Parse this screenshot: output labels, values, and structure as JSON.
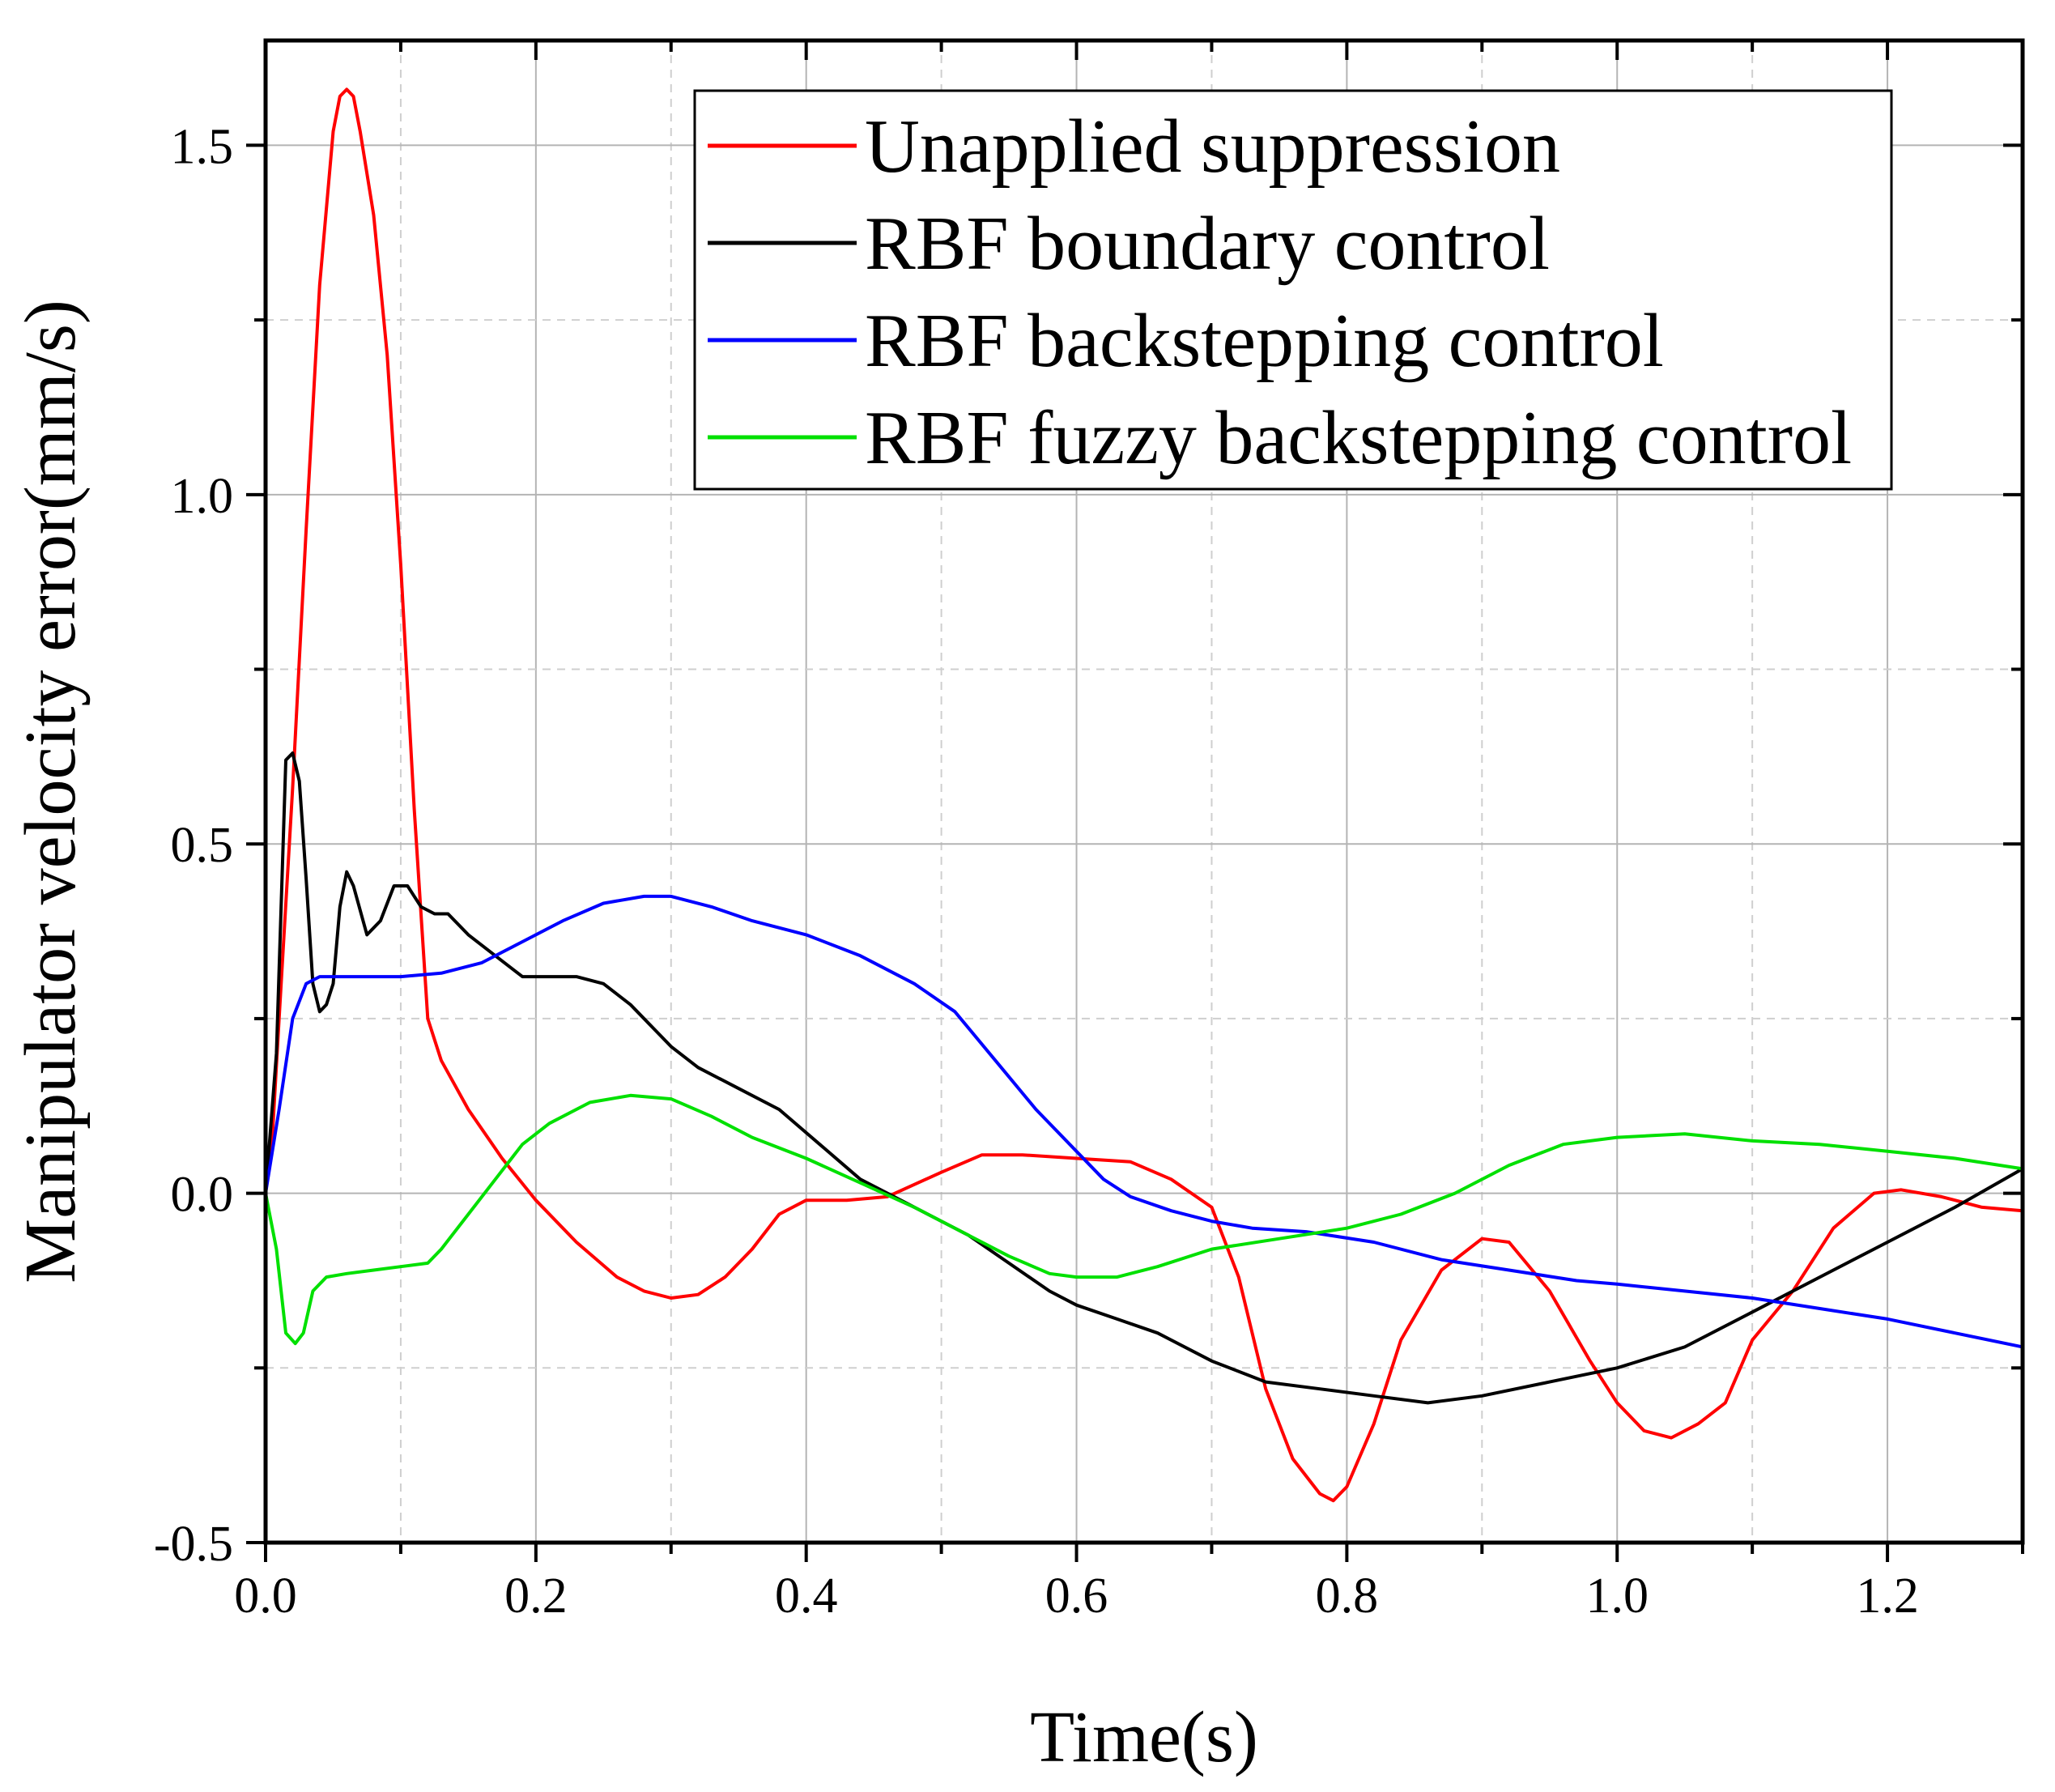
{
  "chart_data": {
    "type": "line",
    "title": "",
    "xlabel": "Time(s)",
    "ylabel": "Manipulator velocity error(mm/s)",
    "xlim": [
      0.0,
      1.3
    ],
    "ylim": [
      -0.5,
      1.65
    ],
    "x_ticks": [
      0.0,
      0.2,
      0.4,
      0.6,
      0.8,
      1.0,
      1.2
    ],
    "x_tick_labels": [
      "0.0",
      "0.2",
      "0.4",
      "0.6",
      "0.8",
      "1.0",
      "1.2"
    ],
    "y_ticks": [
      -0.5,
      0.0,
      0.5,
      1.0,
      1.5
    ],
    "y_tick_labels": [
      "-0.5",
      "0.0",
      "0.5",
      "1.0",
      "1.5"
    ],
    "grid": true,
    "legend_position": "top-right",
    "series": [
      {
        "name": "Unapplied suppression",
        "color": "#ff0000",
        "points": [
          [
            0.0,
            0.0
          ],
          [
            0.005,
            0.08
          ],
          [
            0.01,
            0.25
          ],
          [
            0.02,
            0.58
          ],
          [
            0.03,
            0.95
          ],
          [
            0.04,
            1.3
          ],
          [
            0.05,
            1.52
          ],
          [
            0.055,
            1.57
          ],
          [
            0.06,
            1.58
          ],
          [
            0.065,
            1.57
          ],
          [
            0.07,
            1.52
          ],
          [
            0.08,
            1.4
          ],
          [
            0.09,
            1.2
          ],
          [
            0.1,
            0.9
          ],
          [
            0.11,
            0.55
          ],
          [
            0.12,
            0.25
          ],
          [
            0.13,
            0.19
          ],
          [
            0.15,
            0.12
          ],
          [
            0.175,
            0.05
          ],
          [
            0.2,
            -0.01
          ],
          [
            0.23,
            -0.07
          ],
          [
            0.26,
            -0.12
          ],
          [
            0.28,
            -0.14
          ],
          [
            0.3,
            -0.15
          ],
          [
            0.32,
            -0.145
          ],
          [
            0.34,
            -0.12
          ],
          [
            0.36,
            -0.08
          ],
          [
            0.38,
            -0.03
          ],
          [
            0.4,
            -0.01
          ],
          [
            0.43,
            -0.01
          ],
          [
            0.46,
            -0.005
          ],
          [
            0.5,
            0.03
          ],
          [
            0.53,
            0.055
          ],
          [
            0.56,
            0.055
          ],
          [
            0.6,
            0.05
          ],
          [
            0.64,
            0.045
          ],
          [
            0.67,
            0.02
          ],
          [
            0.7,
            -0.02
          ],
          [
            0.72,
            -0.12
          ],
          [
            0.74,
            -0.28
          ],
          [
            0.76,
            -0.38
          ],
          [
            0.78,
            -0.43
          ],
          [
            0.79,
            -0.44
          ],
          [
            0.8,
            -0.42
          ],
          [
            0.82,
            -0.33
          ],
          [
            0.84,
            -0.21
          ],
          [
            0.87,
            -0.11
          ],
          [
            0.9,
            -0.065
          ],
          [
            0.92,
            -0.07
          ],
          [
            0.95,
            -0.14
          ],
          [
            0.98,
            -0.24
          ],
          [
            1.0,
            -0.3
          ],
          [
            1.02,
            -0.34
          ],
          [
            1.04,
            -0.35
          ],
          [
            1.06,
            -0.33
          ],
          [
            1.08,
            -0.3
          ],
          [
            1.1,
            -0.21
          ],
          [
            1.13,
            -0.14
          ],
          [
            1.16,
            -0.05
          ],
          [
            1.19,
            0.0
          ],
          [
            1.21,
            0.005
          ],
          [
            1.24,
            -0.005
          ],
          [
            1.27,
            -0.02
          ],
          [
            1.3,
            -0.025
          ]
        ]
      },
      {
        "name": "RBF boundary control",
        "color": "#000000",
        "points": [
          [
            0.0,
            0.0
          ],
          [
            0.008,
            0.2
          ],
          [
            0.015,
            0.62
          ],
          [
            0.02,
            0.63
          ],
          [
            0.025,
            0.59
          ],
          [
            0.03,
            0.45
          ],
          [
            0.035,
            0.3
          ],
          [
            0.04,
            0.26
          ],
          [
            0.045,
            0.27
          ],
          [
            0.05,
            0.3
          ],
          [
            0.055,
            0.41
          ],
          [
            0.06,
            0.46
          ],
          [
            0.065,
            0.44
          ],
          [
            0.075,
            0.37
          ],
          [
            0.085,
            0.39
          ],
          [
            0.095,
            0.44
          ],
          [
            0.105,
            0.44
          ],
          [
            0.115,
            0.41
          ],
          [
            0.125,
            0.4
          ],
          [
            0.135,
            0.4
          ],
          [
            0.15,
            0.37
          ],
          [
            0.17,
            0.34
          ],
          [
            0.19,
            0.31
          ],
          [
            0.21,
            0.31
          ],
          [
            0.23,
            0.31
          ],
          [
            0.25,
            0.3
          ],
          [
            0.27,
            0.27
          ],
          [
            0.3,
            0.21
          ],
          [
            0.32,
            0.18
          ],
          [
            0.35,
            0.15
          ],
          [
            0.38,
            0.12
          ],
          [
            0.41,
            0.07
          ],
          [
            0.44,
            0.02
          ],
          [
            0.47,
            -0.01
          ],
          [
            0.5,
            -0.04
          ],
          [
            0.52,
            -0.06
          ],
          [
            0.55,
            -0.1
          ],
          [
            0.58,
            -0.14
          ],
          [
            0.6,
            -0.16
          ],
          [
            0.63,
            -0.18
          ],
          [
            0.66,
            -0.2
          ],
          [
            0.7,
            -0.24
          ],
          [
            0.74,
            -0.27
          ],
          [
            0.78,
            -0.28
          ],
          [
            0.82,
            -0.29
          ],
          [
            0.86,
            -0.3
          ],
          [
            0.9,
            -0.29
          ],
          [
            0.95,
            -0.27
          ],
          [
            1.0,
            -0.25
          ],
          [
            1.05,
            -0.22
          ],
          [
            1.1,
            -0.17
          ],
          [
            1.15,
            -0.12
          ],
          [
            1.2,
            -0.07
          ],
          [
            1.25,
            -0.02
          ],
          [
            1.3,
            0.035
          ]
        ]
      },
      {
        "name": "RBF backstepping control",
        "color": "#0000ff",
        "points": [
          [
            0.0,
            0.0
          ],
          [
            0.01,
            0.12
          ],
          [
            0.02,
            0.25
          ],
          [
            0.03,
            0.3
          ],
          [
            0.04,
            0.31
          ],
          [
            0.06,
            0.31
          ],
          [
            0.08,
            0.31
          ],
          [
            0.1,
            0.31
          ],
          [
            0.13,
            0.315
          ],
          [
            0.16,
            0.33
          ],
          [
            0.19,
            0.36
          ],
          [
            0.22,
            0.39
          ],
          [
            0.25,
            0.415
          ],
          [
            0.28,
            0.425
          ],
          [
            0.3,
            0.425
          ],
          [
            0.33,
            0.41
          ],
          [
            0.36,
            0.39
          ],
          [
            0.4,
            0.37
          ],
          [
            0.44,
            0.34
          ],
          [
            0.48,
            0.3
          ],
          [
            0.51,
            0.26
          ],
          [
            0.54,
            0.19
          ],
          [
            0.57,
            0.12
          ],
          [
            0.6,
            0.06
          ],
          [
            0.62,
            0.02
          ],
          [
            0.64,
            -0.005
          ],
          [
            0.67,
            -0.025
          ],
          [
            0.7,
            -0.04
          ],
          [
            0.73,
            -0.05
          ],
          [
            0.77,
            -0.055
          ],
          [
            0.82,
            -0.07
          ],
          [
            0.87,
            -0.095
          ],
          [
            0.92,
            -0.11
          ],
          [
            0.97,
            -0.125
          ],
          [
            1.0,
            -0.13
          ],
          [
            1.05,
            -0.14
          ],
          [
            1.1,
            -0.15
          ],
          [
            1.15,
            -0.165
          ],
          [
            1.2,
            -0.18
          ],
          [
            1.25,
            -0.2
          ],
          [
            1.3,
            -0.22
          ]
        ]
      },
      {
        "name": "RBF fuzzy backstepping control",
        "color": "#00e000",
        "points": [
          [
            0.0,
            0.0
          ],
          [
            0.008,
            -0.08
          ],
          [
            0.015,
            -0.2
          ],
          [
            0.022,
            -0.215
          ],
          [
            0.028,
            -0.2
          ],
          [
            0.035,
            -0.14
          ],
          [
            0.045,
            -0.12
          ],
          [
            0.06,
            -0.115
          ],
          [
            0.08,
            -0.11
          ],
          [
            0.1,
            -0.105
          ],
          [
            0.12,
            -0.1
          ],
          [
            0.13,
            -0.08
          ],
          [
            0.15,
            -0.03
          ],
          [
            0.17,
            0.02
          ],
          [
            0.19,
            0.07
          ],
          [
            0.21,
            0.1
          ],
          [
            0.24,
            0.13
          ],
          [
            0.27,
            0.14
          ],
          [
            0.3,
            0.135
          ],
          [
            0.33,
            0.11
          ],
          [
            0.36,
            0.08
          ],
          [
            0.4,
            0.05
          ],
          [
            0.44,
            0.015
          ],
          [
            0.48,
            -0.02
          ],
          [
            0.52,
            -0.06
          ],
          [
            0.55,
            -0.09
          ],
          [
            0.58,
            -0.115
          ],
          [
            0.6,
            -0.12
          ],
          [
            0.63,
            -0.12
          ],
          [
            0.66,
            -0.105
          ],
          [
            0.7,
            -0.08
          ],
          [
            0.75,
            -0.065
          ],
          [
            0.8,
            -0.05
          ],
          [
            0.84,
            -0.03
          ],
          [
            0.88,
            0.0
          ],
          [
            0.92,
            0.04
          ],
          [
            0.96,
            0.07
          ],
          [
            1.0,
            0.08
          ],
          [
            1.05,
            0.085
          ],
          [
            1.1,
            0.075
          ],
          [
            1.15,
            0.07
          ],
          [
            1.2,
            0.06
          ],
          [
            1.25,
            0.05
          ],
          [
            1.3,
            0.035
          ]
        ]
      }
    ]
  }
}
